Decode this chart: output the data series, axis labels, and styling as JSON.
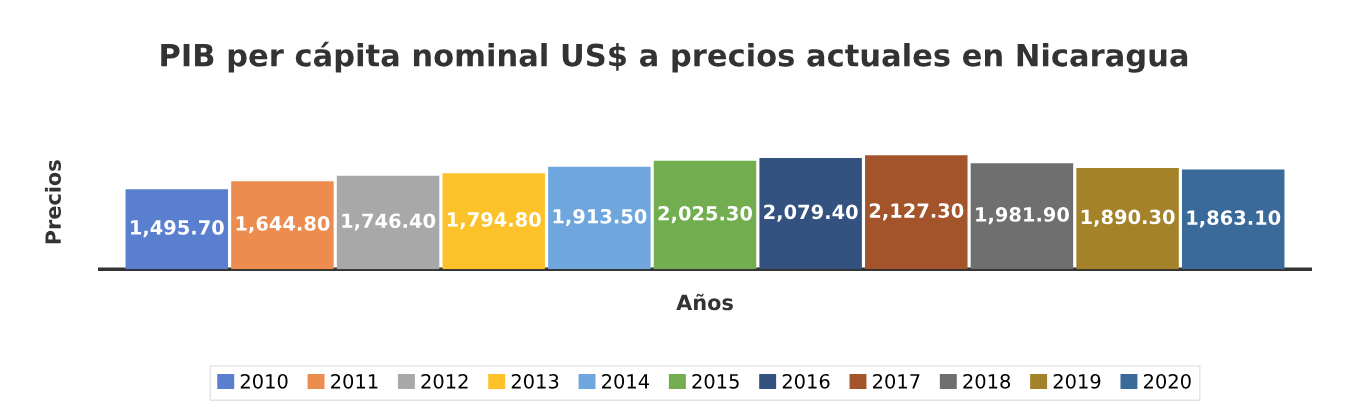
{
  "chart_data": {
    "type": "bar",
    "title": "PIB per cápita nominal US$ a precios actuales en Nicaragua",
    "xlabel": "Años",
    "ylabel": "Precios",
    "categories": [
      null
    ],
    "series": [
      {
        "name": "2010",
        "color": "#5b7fcf",
        "values": [
          1495.7
        ],
        "value_labels": [
          "1,495.70"
        ]
      },
      {
        "name": "2011",
        "color": "#ec8c4e",
        "values": [
          1644.8
        ],
        "value_labels": [
          "1,644.80"
        ]
      },
      {
        "name": "2012",
        "color": "#a8a8a8",
        "values": [
          1746.4
        ],
        "value_labels": [
          "1,746.40"
        ]
      },
      {
        "name": "2013",
        "color": "#fdc12a",
        "values": [
          1794.8
        ],
        "value_labels": [
          "1,794.80"
        ]
      },
      {
        "name": "2014",
        "color": "#70a6de",
        "values": [
          1913.5
        ],
        "value_labels": [
          "1,913.50"
        ]
      },
      {
        "name": "2015",
        "color": "#72ad4f",
        "values": [
          2025.3
        ],
        "value_labels": [
          "2,025.30"
        ]
      },
      {
        "name": "2016",
        "color": "#34527f",
        "values": [
          2079.4
        ],
        "value_labels": [
          "2,079.40"
        ]
      },
      {
        "name": "2017",
        "color": "#a3542a",
        "values": [
          2127.3
        ],
        "value_labels": [
          "2,127.30"
        ]
      },
      {
        "name": "2018",
        "color": "#6f6f6f",
        "values": [
          1981.9
        ],
        "value_labels": [
          "1,981.90"
        ]
      },
      {
        "name": "2019",
        "color": "#a4822a",
        "values": [
          1890.3
        ],
        "value_labels": [
          "1,890.30"
        ]
      },
      {
        "name": "2020",
        "color": "#3a6a9a",
        "values": [
          1863.1
        ],
        "value_labels": [
          "1,863.10"
        ]
      }
    ],
    "legend": "bottom",
    "tick_labels": false
  }
}
